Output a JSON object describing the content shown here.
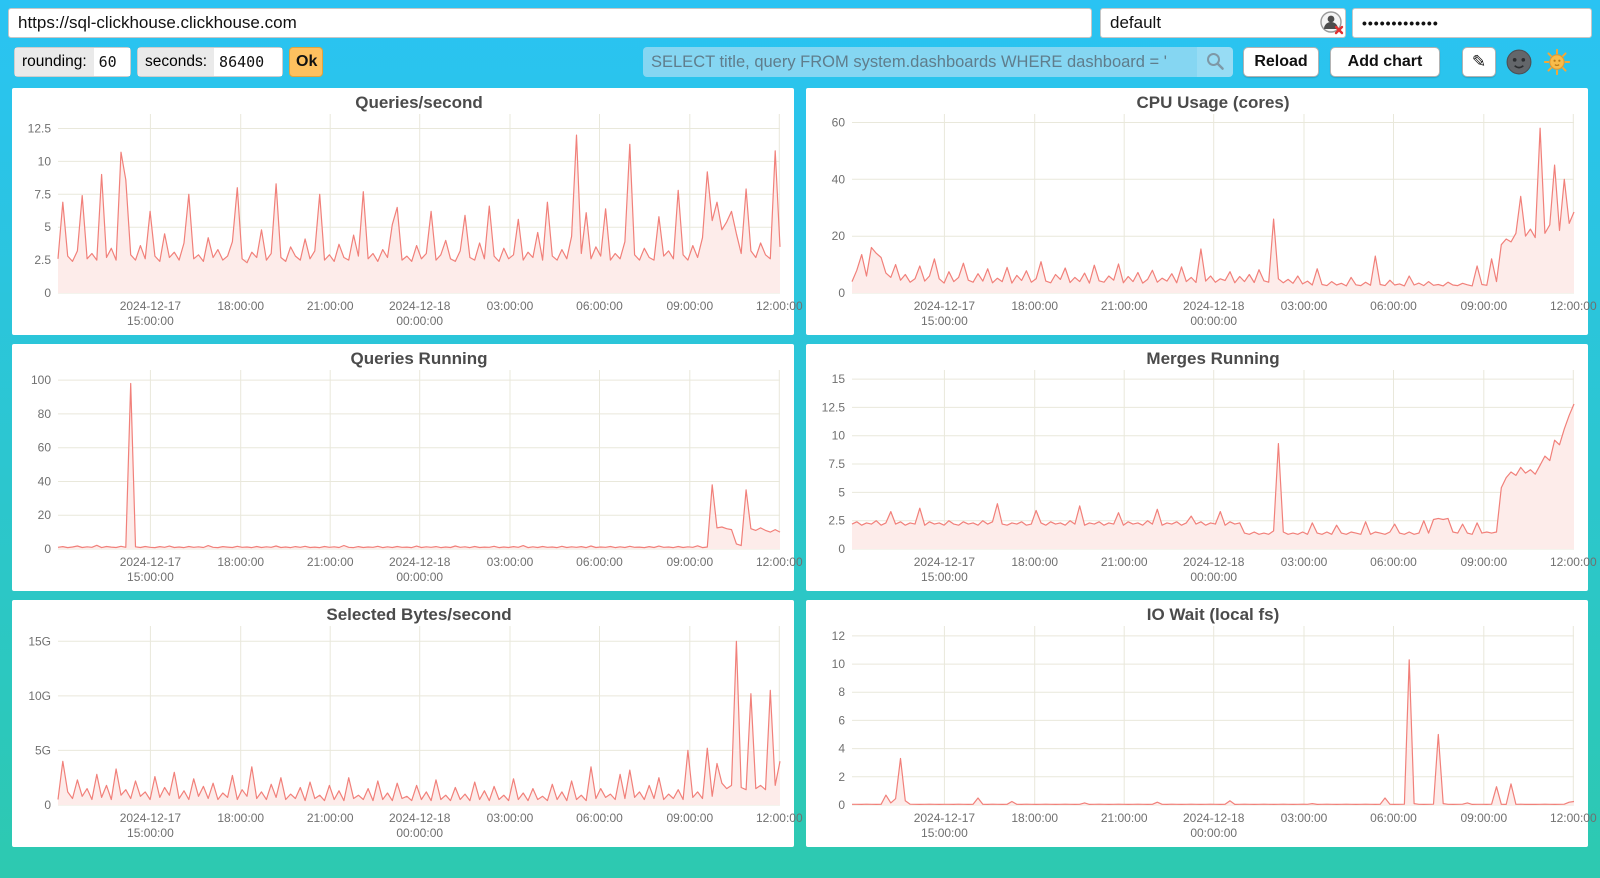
{
  "toolbar": {
    "url": "https://sql-clickhouse.clickhouse.com",
    "user": "default",
    "password_masked": "•••••••••••••",
    "rounding_label": "rounding:",
    "rounding_value": "60",
    "seconds_label": "seconds:",
    "seconds_value": "86400",
    "ok_label": "Ok",
    "search_query": "SELECT title, query FROM system.dashboards WHERE dashboard = '",
    "reload_label": "Reload",
    "add_chart_label": "Add chart",
    "edit_icon": "✎"
  },
  "icons": {
    "search": "magnifier",
    "user_avatar": "broken-user-avatar",
    "dark_theme": "moon-face",
    "light_theme": "sun-face"
  },
  "colors": {
    "background_top": "#2ac3f3",
    "background_bottom": "#2dc9b0",
    "card": "#ffffff",
    "line": "#f1807a",
    "fill": "#fdecea",
    "grid": "#e9e8db",
    "axis_text": "#707070",
    "title": "#4b4b4b",
    "accent_ok": "#fdc05f",
    "search_bg": "#85d6f2"
  },
  "x_axis": {
    "ticks": [
      {
        "f": 0.128,
        "l1": "2024-12-17",
        "l2": "15:00:00"
      },
      {
        "f": 0.253,
        "l1": "18:00:00"
      },
      {
        "f": 0.377,
        "l1": "21:00:00"
      },
      {
        "f": 0.501,
        "l1": "2024-12-18",
        "l2": "00:00:00"
      },
      {
        "f": 0.626,
        "l1": "03:00:00"
      },
      {
        "f": 0.75,
        "l1": "06:00:00"
      },
      {
        "f": 0.875,
        "l1": "09:00:00"
      },
      {
        "f": 0.999,
        "l1": "12:00:00"
      }
    ]
  },
  "chart_data": [
    {
      "type": "line",
      "title": "Queries/second",
      "y_ticks": [
        [
          0,
          "0"
        ],
        [
          2.5,
          "2.5"
        ],
        [
          5,
          "5"
        ],
        [
          7.5,
          "7.5"
        ],
        [
          10,
          "10"
        ],
        [
          12.5,
          "12.5"
        ]
      ],
      "y_max": 13.6,
      "values": [
        2.6,
        6.9,
        2.8,
        2.4,
        3.2,
        7.4,
        2.6,
        3.0,
        2.5,
        9.0,
        2.7,
        3.4,
        2.5,
        10.7,
        8.6,
        2.9,
        2.5,
        3.6,
        2.6,
        6.2,
        2.8,
        2.4,
        4.5,
        2.7,
        3.1,
        2.5,
        3.8,
        7.5,
        2.6,
        2.9,
        2.4,
        4.2,
        2.7,
        3.3,
        2.5,
        2.8,
        3.9,
        8.0,
        2.6,
        2.3,
        3.1,
        2.7,
        4.8,
        2.5,
        3.0,
        8.3,
        2.7,
        2.4,
        3.5,
        2.8,
        2.5,
        4.1,
        2.6,
        3.2,
        7.5,
        2.5,
        2.9,
        2.4,
        3.7,
        2.7,
        2.5,
        4.4,
        2.8,
        7.7,
        2.6,
        3.0,
        2.4,
        3.3,
        2.7,
        5.2,
        6.5,
        2.5,
        2.8,
        2.4,
        3.6,
        2.6,
        3.0,
        6.2,
        2.5,
        2.9,
        4.0,
        2.6,
        2.4,
        3.2,
        5.9,
        2.7,
        2.5,
        3.8,
        2.6,
        6.6,
        2.8,
        2.4,
        3.4,
        2.6,
        2.9,
        5.6,
        2.5,
        3.1,
        2.7,
        4.6,
        2.5,
        6.9,
        2.8,
        2.5,
        3.3,
        2.6,
        4.3,
        12.0,
        3.0,
        6.1,
        2.6,
        3.5,
        2.8,
        6.4,
        2.5,
        3.0,
        2.6,
        3.9,
        11.3,
        2.9,
        2.5,
        3.4,
        2.7,
        2.5,
        5.8,
        2.8,
        3.2,
        2.6,
        7.8,
        2.9,
        2.5,
        3.6,
        2.7,
        4.2,
        9.2,
        5.5,
        6.9,
        4.8,
        5.4,
        6.2,
        4.5,
        3.0,
        7.9,
        3.2,
        2.7,
        3.8,
        2.9,
        2.6,
        10.8,
        3.5
      ]
    },
    {
      "type": "line",
      "title": "CPU Usage (cores)",
      "y_ticks": [
        [
          0,
          "0"
        ],
        [
          20,
          "20"
        ],
        [
          40,
          "40"
        ],
        [
          60,
          "60"
        ]
      ],
      "y_max": 63,
      "values": [
        4.0,
        8.0,
        13.5,
        6.0,
        16.0,
        14.0,
        12.5,
        7.0,
        5.5,
        10.0,
        4.5,
        6.5,
        3.8,
        5.0,
        9.5,
        4.2,
        6.0,
        12.0,
        5.0,
        3.5,
        7.5,
        4.0,
        5.5,
        10.5,
        4.5,
        3.8,
        6.8,
        4.2,
        8.5,
        3.6,
        5.2,
        4.0,
        9.0,
        3.5,
        6.2,
        4.4,
        7.8,
        3.8,
        5.0,
        11.0,
        4.2,
        3.6,
        6.5,
        4.8,
        8.8,
        3.7,
        5.5,
        4.0,
        7.0,
        3.5,
        9.8,
        4.3,
        3.8,
        6.0,
        4.5,
        10.2,
        3.6,
        5.8,
        4.0,
        7.2,
        3.5,
        4.8,
        8.0,
        3.8,
        5.2,
        4.2,
        6.8,
        3.6,
        9.2,
        4.0,
        5.5,
        3.7,
        15.5,
        4.2,
        6.0,
        3.8,
        5.0,
        4.4,
        7.5,
        3.6,
        5.8,
        4.0,
        6.5,
        3.7,
        8.2,
        4.3,
        3.8,
        26.0,
        5.0,
        3.6,
        4.8,
        3.4,
        6.0,
        3.2,
        4.2,
        2.8,
        8.5,
        3.0,
        2.6,
        4.0,
        2.8,
        3.4,
        2.5,
        5.5,
        2.9,
        2.6,
        3.8,
        2.7,
        13.0,
        3.0,
        2.6,
        4.5,
        2.8,
        3.2,
        2.5,
        6.0,
        2.8,
        3.5,
        2.6,
        4.0,
        2.7,
        3.0,
        2.5,
        3.8,
        2.8,
        2.6,
        3.4,
        2.9,
        2.5,
        9.5,
        3.0,
        2.7,
        12.0,
        4.0,
        17.0,
        19.0,
        18.0,
        21.0,
        34.0,
        20.0,
        22.5,
        19.5,
        58.0,
        21.0,
        24.0,
        45.0,
        22.0,
        40.0,
        24.5,
        28.5
      ]
    },
    {
      "type": "line",
      "title": "Queries Running",
      "y_ticks": [
        [
          0,
          "0"
        ],
        [
          20,
          "20"
        ],
        [
          40,
          "40"
        ],
        [
          60,
          "60"
        ],
        [
          80,
          "80"
        ],
        [
          100,
          "100"
        ]
      ],
      "y_max": 106,
      "values": [
        1.0,
        1.4,
        0.8,
        1.2,
        1.8,
        0.9,
        1.3,
        1.0,
        2.2,
        0.8,
        1.5,
        1.1,
        0.9,
        1.6,
        1.0,
        98,
        1.3,
        0.9,
        1.5,
        1.0,
        0.8,
        1.4,
        1.0,
        1.7,
        0.9,
        1.2,
        0.8,
        1.5,
        1.0,
        1.3,
        0.9,
        2.0,
        1.0,
        0.8,
        1.4,
        1.1,
        0.9,
        1.6,
        1.0,
        1.2,
        0.8,
        1.5,
        0.9,
        1.3,
        1.0,
        1.8,
        0.9,
        1.2,
        0.8,
        1.4,
        1.0,
        1.6,
        0.9,
        1.1,
        0.8,
        1.5,
        1.0,
        1.3,
        0.9,
        2.1,
        1.0,
        0.8,
        1.4,
        0.9,
        1.2,
        1.0,
        1.6,
        0.8,
        1.3,
        0.9,
        1.5,
        1.0,
        1.1,
        0.8,
        1.7,
        0.9,
        1.3,
        1.0,
        1.4,
        0.8,
        1.2,
        0.9,
        1.8,
        1.0,
        1.3,
        0.8,
        1.5,
        0.9,
        1.1,
        1.0,
        1.6,
        0.8,
        1.2,
        0.9,
        1.4,
        1.0,
        2.0,
        0.8,
        1.3,
        0.9,
        1.5,
        1.0,
        1.2,
        0.8,
        1.6,
        0.9,
        1.3,
        1.0,
        1.4,
        0.8,
        1.8,
        0.9,
        1.2,
        1.0,
        1.5,
        0.8,
        1.3,
        0.9,
        1.6,
        1.0,
        1.1,
        0.8,
        1.4,
        0.9,
        1.7,
        1.0,
        1.2,
        0.8,
        1.5,
        0.9,
        1.3,
        1.0,
        1.9,
        0.8,
        1.2,
        38,
        12.5,
        13.0,
        12.0,
        11.5,
        3.0,
        2.0,
        35.0,
        12.0,
        11.0,
        12.5,
        11.0,
        10.0,
        11.5,
        10.0
      ]
    },
    {
      "type": "line",
      "title": "Merges Running",
      "y_ticks": [
        [
          0,
          "0"
        ],
        [
          2.5,
          "2.5"
        ],
        [
          5,
          "5"
        ],
        [
          7.5,
          "7.5"
        ],
        [
          10,
          "10"
        ],
        [
          12.5,
          "12.5"
        ],
        [
          15,
          "15"
        ]
      ],
      "y_max": 15.8,
      "values": [
        2.2,
        2.4,
        2.1,
        2.3,
        2.2,
        2.5,
        2.1,
        2.3,
        3.3,
        2.2,
        2.4,
        2.1,
        2.3,
        2.2,
        3.6,
        2.1,
        2.4,
        2.2,
        2.3,
        2.1,
        2.5,
        2.2,
        2.1,
        2.4,
        2.2,
        2.3,
        2.1,
        2.5,
        2.2,
        2.4,
        4.0,
        2.2,
        2.1,
        2.3,
        2.2,
        2.4,
        2.1,
        2.2,
        3.4,
        2.3,
        2.1,
        2.4,
        2.2,
        2.3,
        2.1,
        2.5,
        2.2,
        3.8,
        2.1,
        2.3,
        2.2,
        2.4,
        2.1,
        2.3,
        2.2,
        3.2,
        2.1,
        2.4,
        2.2,
        2.3,
        2.1,
        2.5,
        2.2,
        3.5,
        2.1,
        2.3,
        2.2,
        2.4,
        2.1,
        2.3,
        2.9,
        2.2,
        2.4,
        2.1,
        2.3,
        2.2,
        3.3,
        2.1,
        2.4,
        2.2,
        2.3,
        1.4,
        1.3,
        1.5,
        1.3,
        1.4,
        1.3,
        1.6,
        9.3,
        1.5,
        1.3,
        1.4,
        1.3,
        1.5,
        1.3,
        2.3,
        1.4,
        1.3,
        1.5,
        1.3,
        2.1,
        1.4,
        1.3,
        1.5,
        1.4,
        1.3,
        2.4,
        1.3,
        1.5,
        1.4,
        1.3,
        1.5,
        2.2,
        1.4,
        1.3,
        1.5,
        1.3,
        1.4,
        2.5,
        1.4,
        2.6,
        2.7,
        2.6,
        2.7,
        1.5,
        1.4,
        2.2,
        1.4,
        1.3,
        2.3,
        1.4,
        1.5,
        1.4,
        1.5,
        5.4,
        6.3,
        6.8,
        6.5,
        7.2,
        6.7,
        7.0,
        6.6,
        7.4,
        8.2,
        7.8,
        9.6,
        9.2,
        10.6,
        11.8,
        12.8
      ]
    },
    {
      "type": "line",
      "title": "Selected Bytes/second",
      "unit": "G",
      "y_ticks": [
        [
          0,
          "0"
        ],
        [
          5,
          "5G"
        ],
        [
          10,
          "10G"
        ],
        [
          15,
          "15G"
        ]
      ],
      "y_max": 16.4,
      "values": [
        0.5,
        4.0,
        1.2,
        0.6,
        2.3,
        0.8,
        1.5,
        0.5,
        2.8,
        0.7,
        1.8,
        0.5,
        3.3,
        0.9,
        1.4,
        0.6,
        2.2,
        0.8,
        1.2,
        0.5,
        2.6,
        0.7,
        1.6,
        0.9,
        3.0,
        0.6,
        1.3,
        0.5,
        2.4,
        0.8,
        1.7,
        0.6,
        2.0,
        0.5,
        1.1,
        0.7,
        2.7,
        0.5,
        1.4,
        0.8,
        3.5,
        0.6,
        1.2,
        0.5,
        1.9,
        0.7,
        2.5,
        0.5,
        1.0,
        0.6,
        1.6,
        0.4,
        2.1,
        0.6,
        0.9,
        0.4,
        1.8,
        0.5,
        1.3,
        0.4,
        2.5,
        0.6,
        0.9,
        0.5,
        1.5,
        0.4,
        2.2,
        0.5,
        1.1,
        0.4,
        2.0,
        0.6,
        0.8,
        0.4,
        1.8,
        0.5,
        1.2,
        0.4,
        2.3,
        0.5,
        0.9,
        0.4,
        1.6,
        0.5,
        1.0,
        0.4,
        2.1,
        0.5,
        1.3,
        0.4,
        1.7,
        0.5,
        0.9,
        0.4,
        2.4,
        0.5,
        1.1,
        0.4,
        1.5,
        0.5,
        0.8,
        0.4,
        1.9,
        0.5,
        1.2,
        0.4,
        2.2,
        0.5,
        0.9,
        0.4,
        3.5,
        0.6,
        1.5,
        0.7,
        1.0,
        0.5,
        2.8,
        0.6,
        3.2,
        0.7,
        1.2,
        0.5,
        1.8,
        0.6,
        2.5,
        0.5,
        1.0,
        0.6,
        1.4,
        0.5,
        5.0,
        0.7,
        1.2,
        0.6,
        5.2,
        0.8,
        3.8,
        2.0,
        1.5,
        1.8,
        15.0,
        1.6,
        1.4,
        10.2,
        1.5,
        1.8,
        1.4,
        10.5,
        1.8,
        4.0
      ]
    },
    {
      "type": "line",
      "title": "IO Wait (local fs)",
      "y_ticks": [
        [
          0,
          "0"
        ],
        [
          2,
          "2"
        ],
        [
          4,
          "4"
        ],
        [
          6,
          "6"
        ],
        [
          8,
          "8"
        ],
        [
          10,
          "10"
        ],
        [
          12,
          "12"
        ]
      ],
      "y_max": 12.7,
      "values": [
        0.05,
        0.05,
        0.04,
        0.06,
        0.05,
        0.04,
        0.05,
        0.7,
        0.15,
        0.45,
        3.3,
        0.3,
        0.06,
        0.05,
        0.04,
        0.05,
        0.06,
        0.05,
        0.04,
        0.05,
        0.05,
        0.04,
        0.06,
        0.05,
        0.04,
        0.05,
        0.5,
        0.05,
        0.04,
        0.06,
        0.05,
        0.04,
        0.05,
        0.25,
        0.05,
        0.04,
        0.06,
        0.05,
        0.04,
        0.05,
        0.06,
        0.05,
        0.04,
        0.05,
        0.06,
        0.05,
        0.04,
        0.05,
        0.15,
        0.04,
        0.05,
        0.06,
        0.05,
        0.04,
        0.05,
        0.06,
        0.05,
        0.04,
        0.05,
        0.06,
        0.05,
        0.04,
        0.05,
        0.2,
        0.05,
        0.04,
        0.06,
        0.05,
        0.04,
        0.05,
        0.06,
        0.05,
        0.04,
        0.05,
        0.06,
        0.05,
        0.04,
        0.05,
        0.3,
        0.04,
        0.05,
        0.06,
        0.05,
        0.04,
        0.05,
        0.06,
        0.05,
        0.04,
        0.05,
        0.06,
        0.05,
        0.04,
        0.05,
        0.06,
        0.05,
        0.1,
        0.04,
        0.05,
        0.06,
        0.05,
        0.04,
        0.05,
        0.06,
        0.05,
        0.04,
        0.05,
        0.06,
        0.05,
        0.04,
        0.05,
        0.5,
        0.05,
        0.04,
        0.05,
        0.06,
        10.3,
        0.1,
        0.05,
        0.04,
        0.05,
        0.06,
        5.0,
        0.1,
        0.05,
        0.04,
        0.05,
        0.06,
        0.15,
        0.04,
        0.05,
        0.05,
        0.04,
        0.06,
        1.3,
        0.05,
        0.04,
        1.5,
        0.05,
        0.06,
        0.04,
        0.05,
        0.04,
        0.05,
        0.06,
        0.05,
        0.04,
        0.05,
        0.06,
        0.2,
        0.25
      ]
    }
  ]
}
